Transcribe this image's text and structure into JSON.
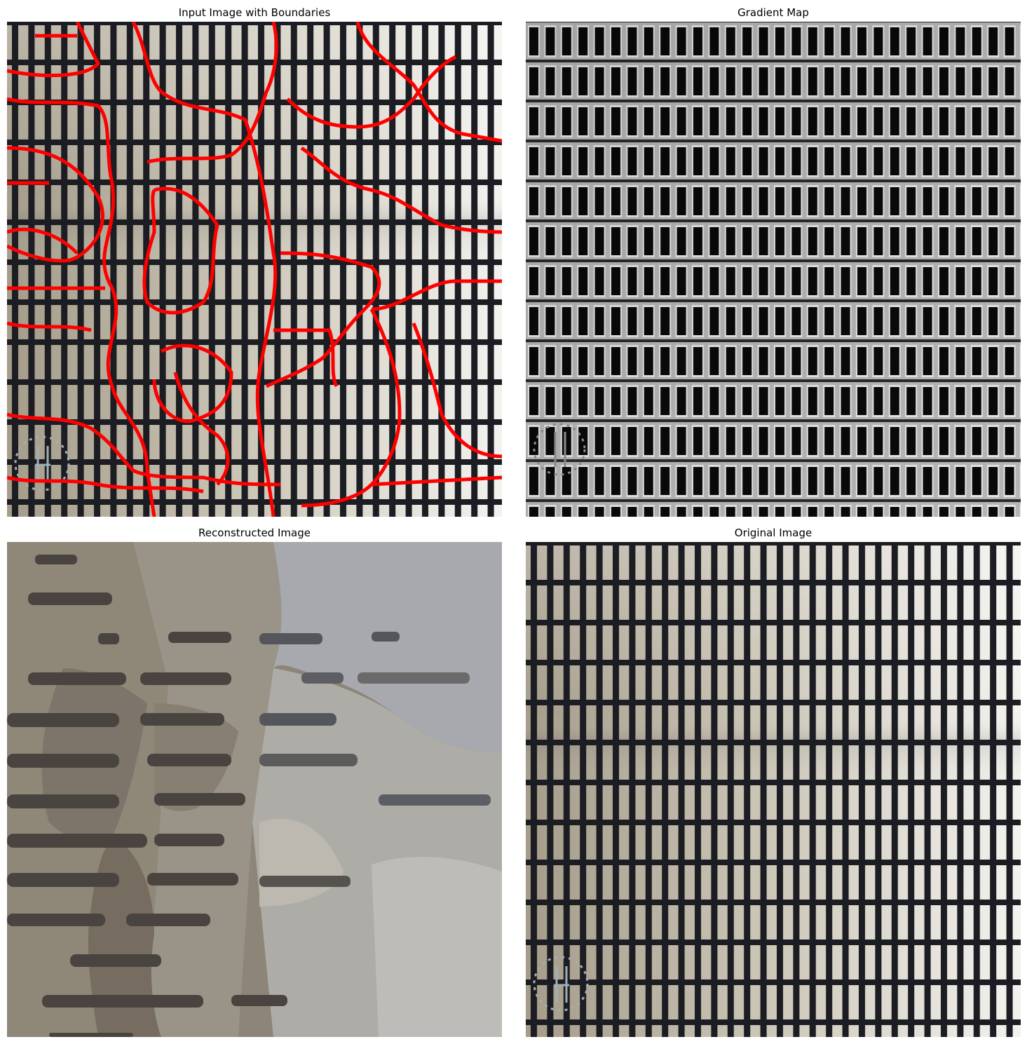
{
  "figure": {
    "panels": [
      {
        "id": "boundaries",
        "title": "Input Image with Boundaries"
      },
      {
        "id": "gradient",
        "title": "Gradient Map"
      },
      {
        "id": "reconstructed",
        "title": "Reconstructed Image"
      },
      {
        "id": "original",
        "title": "Original Image"
      }
    ]
  },
  "colors": {
    "background_left": "#a69c8a",
    "background_right": "#f2f1ec",
    "grid_line": "#1a1c22",
    "boundary": "#ff0000",
    "gradient_dark": "#0c0c0c",
    "gradient_light": "#c8c8c8"
  },
  "icons": [
    "watermark-logo"
  ]
}
